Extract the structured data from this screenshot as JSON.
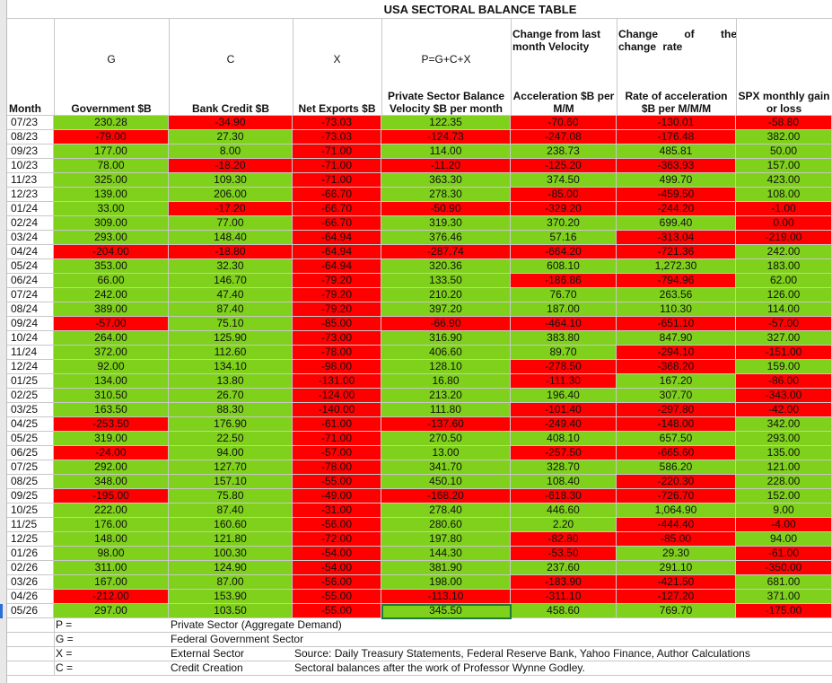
{
  "title": "USA SECTORAL BALANCE TABLE",
  "subheaders": {
    "velocity": "Change from last month Velocity",
    "change_rate": "Change of the change rate"
  },
  "formula_row": [
    "G",
    "C",
    "X",
    "P=G+C+X"
  ],
  "columns": [
    "Month",
    "Government $B",
    "Bank Credit $B",
    "Net Exports $B",
    "Private Sector Balance Velocity $B per month",
    "Acceleration $B per M/M",
    "Rate of acceleration $B per M/M/M",
    "SPX monthly gain or loss"
  ],
  "rows": [
    [
      "07/23",
      "230.28",
      "-34.90",
      "-73.03",
      "122.35",
      "-70.60",
      "-130.01",
      "-58.80"
    ],
    [
      "08/23",
      "-79.00",
      "27.30",
      "-73.03",
      "-124.73",
      "-247.08",
      "-176.48",
      "382.00"
    ],
    [
      "09/23",
      "177.00",
      "8.00",
      "-71.00",
      "114.00",
      "238.73",
      "485.81",
      "50.00"
    ],
    [
      "10/23",
      "78.00",
      "-18.20",
      "-71.00",
      "-11.20",
      "-125.20",
      "-363.93",
      "157.00"
    ],
    [
      "11/23",
      "325.00",
      "109.30",
      "-71.00",
      "363.30",
      "374.50",
      "499.70",
      "423.00"
    ],
    [
      "12/23",
      "139.00",
      "206.00",
      "-66.70",
      "278.30",
      "-85.00",
      "-459.50",
      "108.00"
    ],
    [
      "01/24",
      "33.00",
      "-17.20",
      "-66.70",
      "-50.90",
      "-329.20",
      "-244.20",
      "-1.00"
    ],
    [
      "02/24",
      "309.00",
      "77.00",
      "-66.70",
      "319.30",
      "370.20",
      "699.40",
      "0.00"
    ],
    [
      "03/24",
      "293.00",
      "148.40",
      "-64.94",
      "376.46",
      "57.16",
      "-313.04",
      "-219.00"
    ],
    [
      "04/24",
      "-204.00",
      "-18.80",
      "-64.94",
      "-287.74",
      "-664.20",
      "-721.36",
      "242.00"
    ],
    [
      "05/24",
      "353.00",
      "32.30",
      "-64.94",
      "320.36",
      "608.10",
      "1,272.30",
      "183.00"
    ],
    [
      "06/24",
      "66.00",
      "146.70",
      "-79.20",
      "133.50",
      "-186.86",
      "-794.96",
      "62.00"
    ],
    [
      "07/24",
      "242.00",
      "47.40",
      "-79.20",
      "210.20",
      "76.70",
      "263.56",
      "126.00"
    ],
    [
      "08/24",
      "389.00",
      "87.40",
      "-79.20",
      "397.20",
      "187.00",
      "110.30",
      "114.00"
    ],
    [
      "09/24",
      "-57.00",
      "75.10",
      "-85.00",
      "-66.90",
      "-464.10",
      "-651.10",
      "-57.00"
    ],
    [
      "10/24",
      "264.00",
      "125.90",
      "-73.00",
      "316.90",
      "383.80",
      "847.90",
      "327.00"
    ],
    [
      "11/24",
      "372.00",
      "112.60",
      "-78.00",
      "406.60",
      "89.70",
      "-294.10",
      "-151.00"
    ],
    [
      "12/24",
      "92.00",
      "134.10",
      "-98.00",
      "128.10",
      "-278.50",
      "-368.20",
      "159.00"
    ],
    [
      "01/25",
      "134.00",
      "13.80",
      "-131.00",
      "16.80",
      "-111.30",
      "167.20",
      "-86.00"
    ],
    [
      "02/25",
      "310.50",
      "26.70",
      "-124.00",
      "213.20",
      "196.40",
      "307.70",
      "-343.00"
    ],
    [
      "03/25",
      "163.50",
      "88.30",
      "-140.00",
      "111.80",
      "-101.40",
      "-297.80",
      "-42.00"
    ],
    [
      "04/25",
      "-253.50",
      "176.90",
      "-61.00",
      "-137.60",
      "-249.40",
      "-148.00",
      "342.00"
    ],
    [
      "05/25",
      "319.00",
      "22.50",
      "-71.00",
      "270.50",
      "408.10",
      "657.50",
      "293.00"
    ],
    [
      "06/25",
      "-24.00",
      "94.00",
      "-57.00",
      "13.00",
      "-257.50",
      "-665.60",
      "135.00"
    ],
    [
      "07/25",
      "292.00",
      "127.70",
      "-78.00",
      "341.70",
      "328.70",
      "586.20",
      "121.00"
    ],
    [
      "08/25",
      "348.00",
      "157.10",
      "-55.00",
      "450.10",
      "108.40",
      "-220.30",
      "228.00"
    ],
    [
      "09/25",
      "-195.00",
      "75.80",
      "-49.00",
      "-168.20",
      "-618.30",
      "-726.70",
      "152.00"
    ],
    [
      "10/25",
      "222.00",
      "87.40",
      "-31.00",
      "278.40",
      "446.60",
      "1,064.90",
      "9.00"
    ],
    [
      "11/25",
      "176.00",
      "160.60",
      "-56.00",
      "280.60",
      "2.20",
      "-444.40",
      "-4.00"
    ],
    [
      "12/25",
      "148.00",
      "121.80",
      "-72.00",
      "197.80",
      "-82.80",
      "-85.00",
      "94.00"
    ],
    [
      "01/26",
      "98.00",
      "100.30",
      "-54.00",
      "144.30",
      "-53.50",
      "29.30",
      "-61.00"
    ],
    [
      "02/26",
      "311.00",
      "124.90",
      "-54.00",
      "381.90",
      "237.60",
      "291.10",
      "-350.00"
    ],
    [
      "03/26",
      "167.00",
      "87.00",
      "-56.00",
      "198.00",
      "-183.90",
      "-421.50",
      "681.00"
    ],
    [
      "04/26",
      "-212.00",
      "153.90",
      "-55.00",
      "-113.10",
      "-311.10",
      "-127.20",
      "371.00"
    ],
    [
      "05/26",
      "297.00",
      "103.50",
      "-55.00",
      "345.50",
      "458.60",
      "769.70",
      "-175.00"
    ]
  ],
  "legend": [
    {
      "symbol": "P =",
      "text": "Private Sector (Aggregate Demand)"
    },
    {
      "symbol": "G =",
      "text": "Federal Government Sector"
    },
    {
      "symbol": "X =",
      "text": "External Sector"
    },
    {
      "symbol": "C =",
      "text": "Credit Creation"
    }
  ],
  "notes": [
    "Source: Daily Treasury Statements, Federal Reserve Bank, Yahoo Finance, Author Calculations",
    "Sectoral balances after the work of Professor Wynne Godley."
  ]
}
